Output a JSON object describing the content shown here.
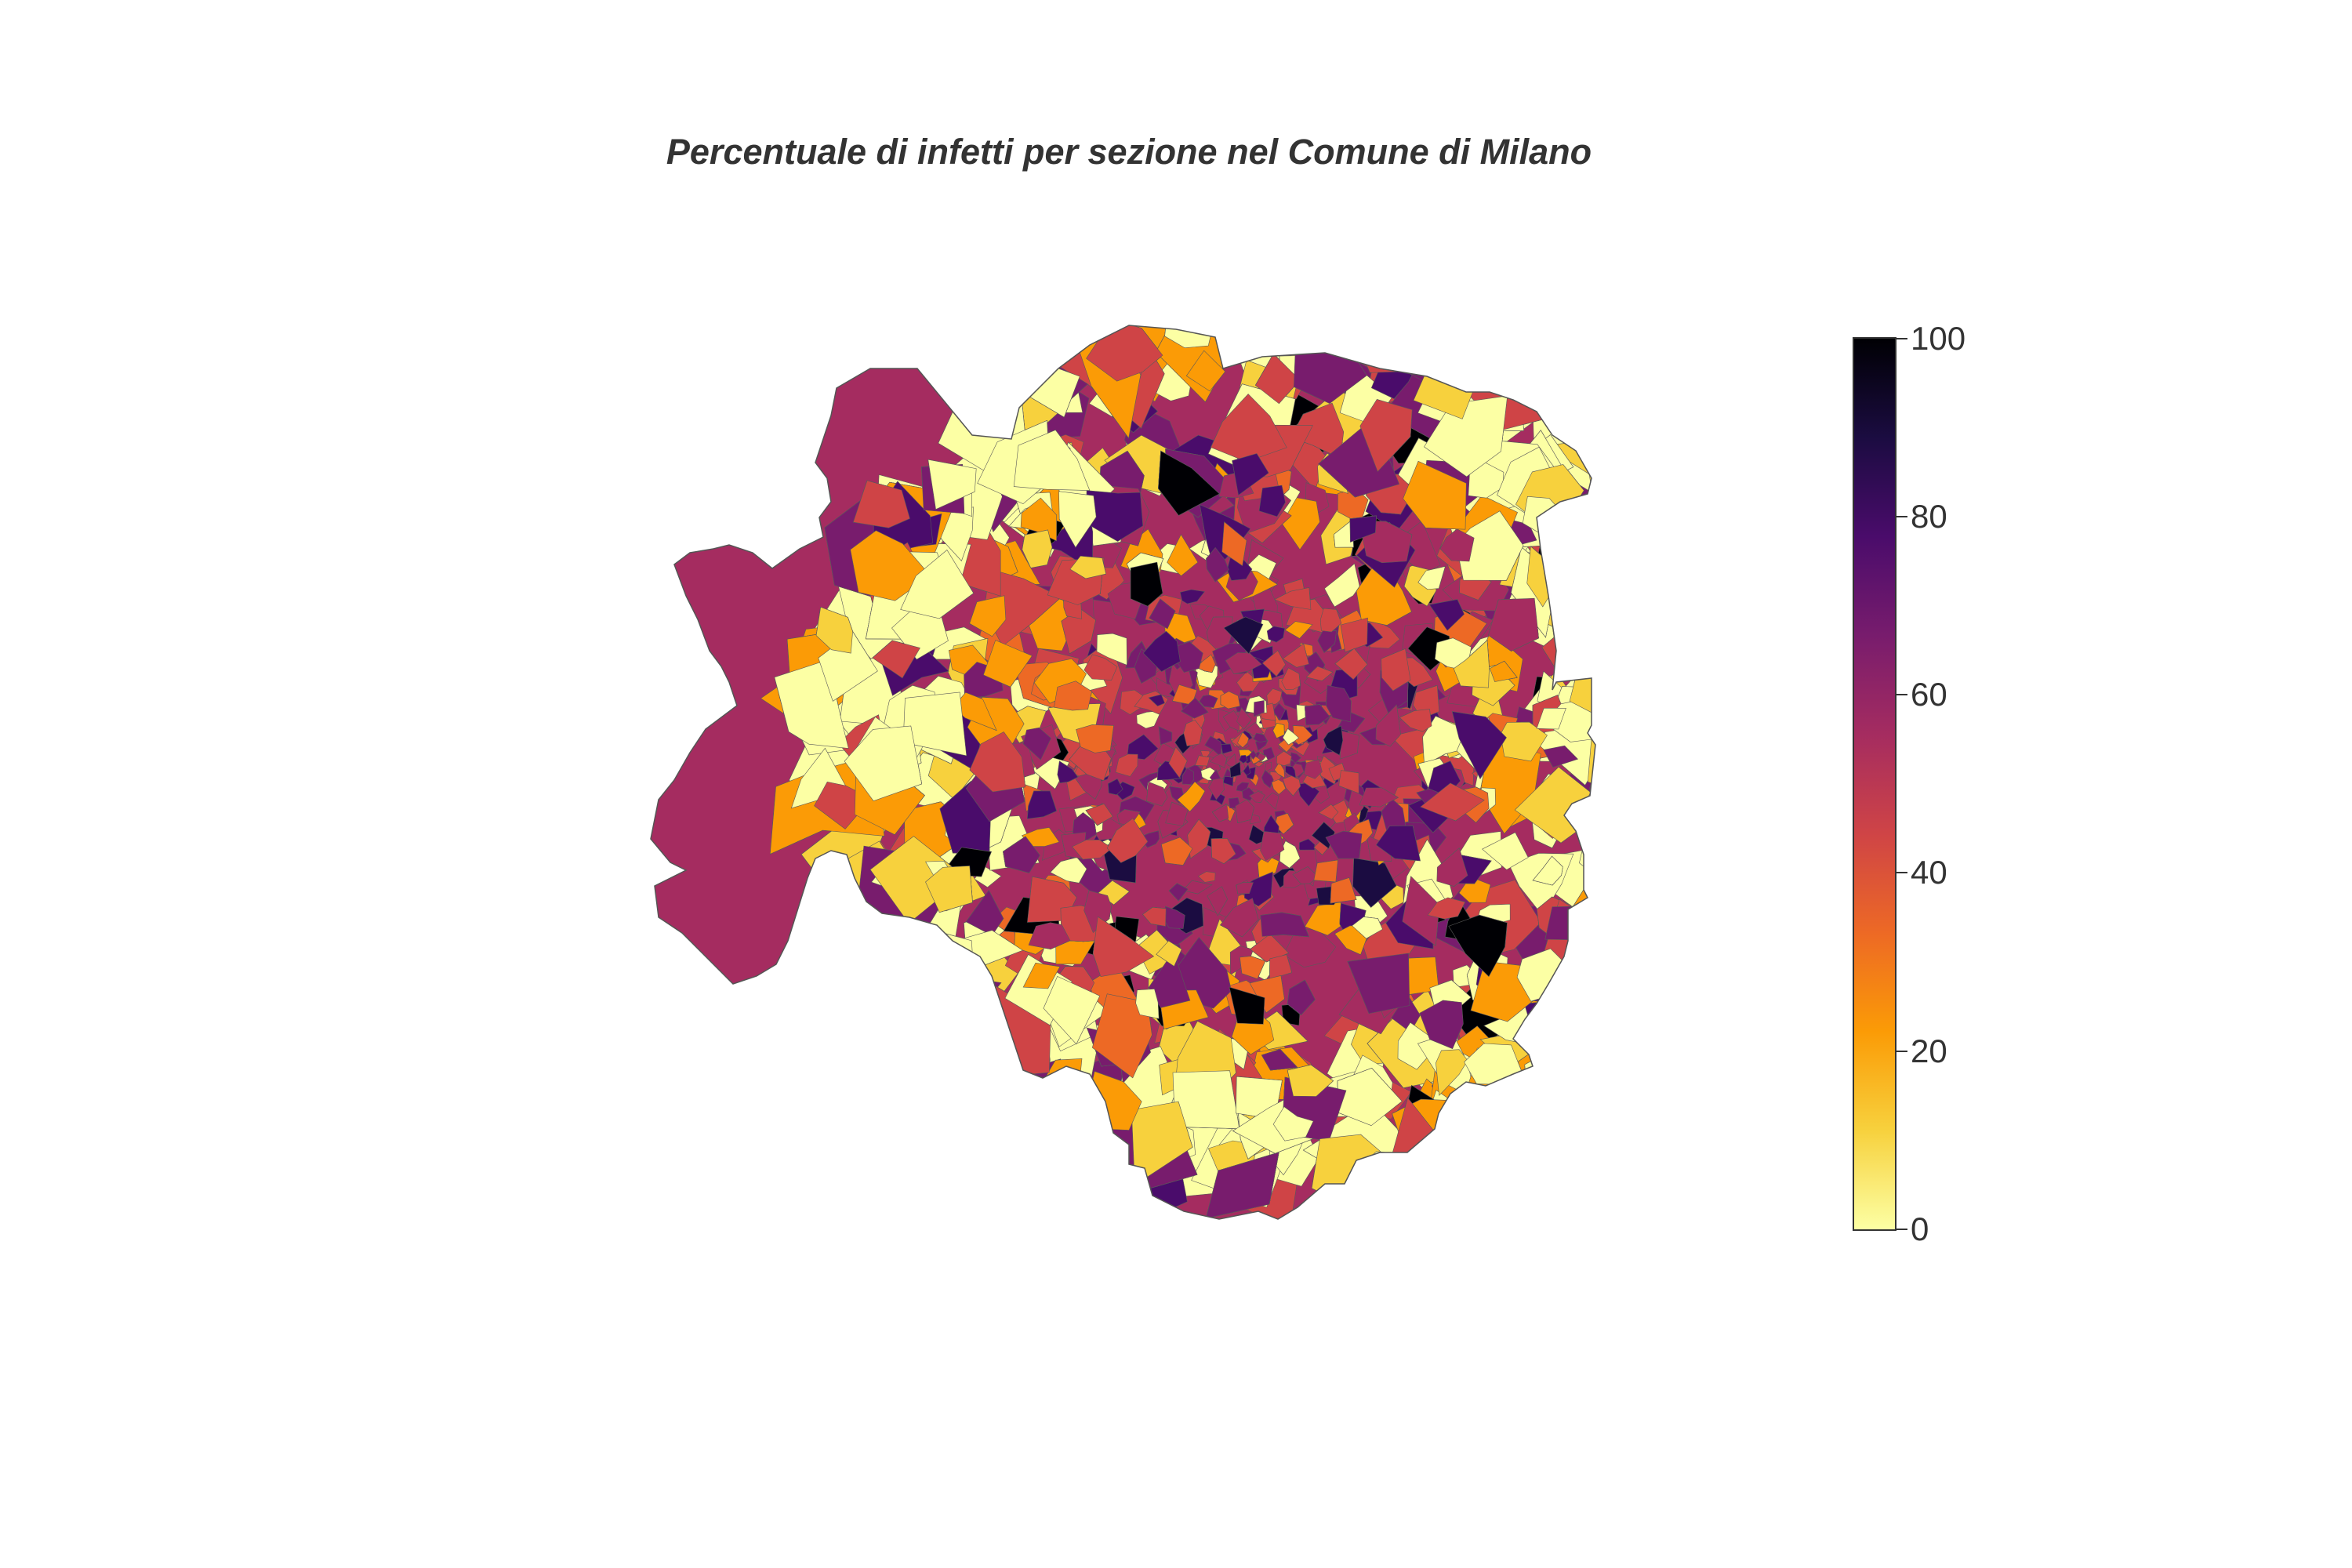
{
  "title": "Percentuale di infetti per sezione nel Comune di Milano",
  "chart_data": {
    "type": "choropleth",
    "title": "Percentuale di infetti per sezione nel Comune di Milano",
    "colorscale": "inferno (reversed)",
    "color_stops": [
      "#fcffa4",
      "#f7d13d",
      "#fb9b06",
      "#ed6925",
      "#cf4446",
      "#a52c60",
      "#781c6d",
      "#4a0c6b",
      "#1b0c41",
      "#000004"
    ],
    "colorbar": {
      "range": [
        0,
        100
      ],
      "ticks": [
        "0",
        "20",
        "40",
        "60",
        "80",
        "100"
      ],
      "placement": "right"
    },
    "region": "Comune di Milano",
    "unit_of_area": "sezione"
  }
}
